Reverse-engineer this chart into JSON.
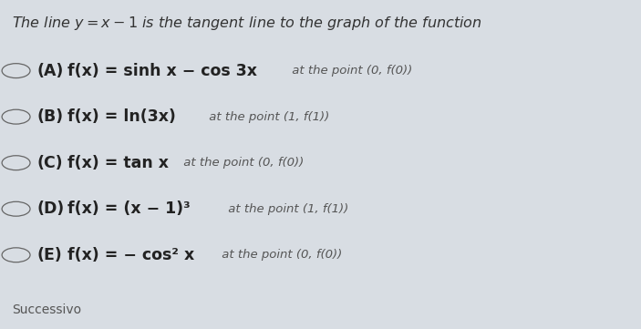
{
  "background_color": "#d8dde3",
  "title_text_plain": "The line ",
  "title_math": "y = x − 1",
  "title_text_end": " is the tangent line to the graph of the function",
  "title_fontsize": 11.5,
  "title_color": "#333333",
  "options": [
    {
      "label": "(A)",
      "main_bold": "f(x) = sinh x − cos 3x",
      "point": " at the point (0, f(0))"
    },
    {
      "label": "(B)",
      "main_bold": "f(x) = ln(3x)",
      "point": " at the point (1, f(1))"
    },
    {
      "label": "(C)",
      "main_bold": "f(x) = tan x",
      "point": " at the point (0, f(0))"
    },
    {
      "label": "(D)",
      "main_bold": "f(x) = (x − 1)³",
      "point": " at the point (1, f(1))"
    },
    {
      "label": "(E)",
      "main_bold": "f(x) = − cos² x",
      "point": " at the point (0, f(0))"
    }
  ],
  "successivo_text": "Successivo",
  "successivo_fontsize": 10,
  "successivo_color": "#555555",
  "option_fontsize_main": 12.5,
  "option_fontsize_point": 9.5,
  "option_color": "#222222",
  "circle_color": "#666666"
}
